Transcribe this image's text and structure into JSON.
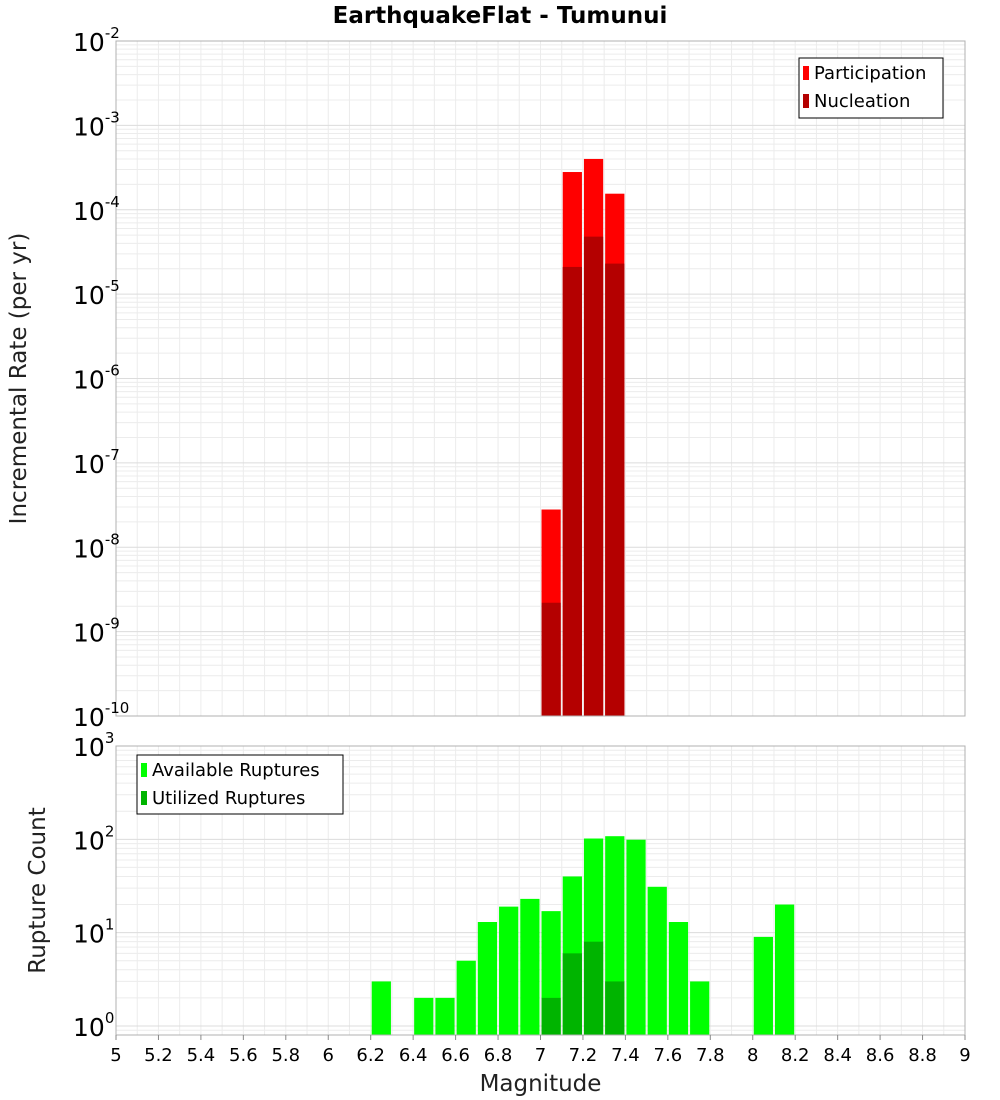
{
  "chart_title": "EarthquakeFlat - Tumunui",
  "chart_data": [
    {
      "type": "bar",
      "name": "incremental-rate",
      "ylabel": "Incremental Rate (per yr)",
      "yscale": "log",
      "ylim": [
        1e-10,
        0.01
      ],
      "xlim": [
        5,
        9
      ],
      "bin_width": 0.1,
      "grid": true,
      "legend_position": "top-right",
      "series": [
        {
          "name": "Participation",
          "color": "#ff0000",
          "x": [
            7.05,
            7.15,
            7.25,
            7.35
          ],
          "values": [
            2.8e-08,
            0.00028,
            0.0004,
            0.000155
          ]
        },
        {
          "name": "Nucleation",
          "color": "#b40000",
          "x": [
            7.05,
            7.15,
            7.25,
            7.35
          ],
          "values": [
            2.2e-09,
            2.1e-05,
            4.8e-05,
            2.3e-05
          ]
        }
      ]
    },
    {
      "type": "bar",
      "name": "rupture-count",
      "xlabel": "Magnitude",
      "ylabel": "Rupture Count",
      "yscale": "log",
      "ylim": [
        0.8,
        1000
      ],
      "xlim": [
        5,
        9
      ],
      "bin_width": 0.1,
      "grid": true,
      "legend_position": "top-left",
      "xticks": [
        "5",
        "5.2",
        "5.4",
        "5.6",
        "5.8",
        "6",
        "6.2",
        "6.4",
        "6.6",
        "6.8",
        "7",
        "7.2",
        "7.4",
        "7.6",
        "7.8",
        "8",
        "8.2",
        "8.4",
        "8.6",
        "8.8",
        "9"
      ],
      "series": [
        {
          "name": "Available Ruptures",
          "color": "#00ff00",
          "x": [
            6.25,
            6.45,
            6.55,
            6.65,
            6.75,
            6.85,
            6.95,
            7.05,
            7.15,
            7.25,
            7.35,
            7.45,
            7.55,
            7.65,
            7.75,
            8.05,
            8.15
          ],
          "values": [
            3,
            2,
            2,
            5,
            13,
            19,
            23,
            17,
            40,
            102,
            108,
            99,
            31,
            13,
            3,
            9,
            20
          ]
        },
        {
          "name": "Utilized Ruptures",
          "color": "#00b400",
          "x": [
            7.05,
            7.15,
            7.25,
            7.35
          ],
          "values": [
            2,
            6,
            8,
            3
          ]
        }
      ]
    }
  ]
}
